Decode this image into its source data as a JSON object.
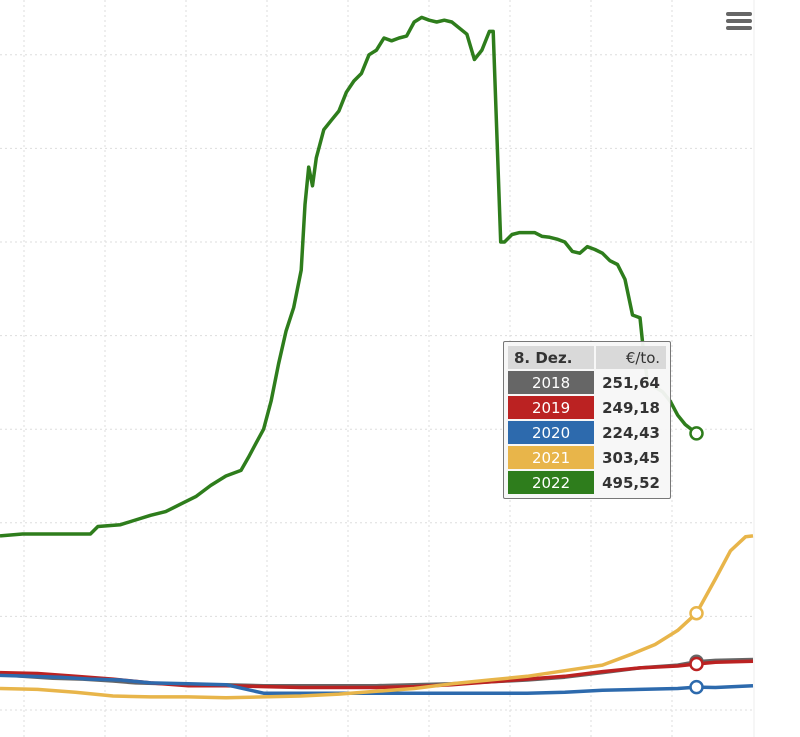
{
  "colors": {
    "2018": "#666666",
    "2019": "#bb2222",
    "2020": "#2d6aad",
    "2021": "#e8b54a",
    "2022": "#2e7d1c",
    "grid": "#dddddd"
  },
  "menu": {
    "icon": "hamburger-menu-icon"
  },
  "tooltip": {
    "date": "8. Dez.",
    "unit": "€/to.",
    "rows": [
      {
        "year": "2018",
        "value": "251,64"
      },
      {
        "year": "2019",
        "value": "249,18"
      },
      {
        "year": "2020",
        "value": "224,43"
      },
      {
        "year": "2021",
        "value": "303,45"
      },
      {
        "year": "2022",
        "value": "495,52"
      }
    ]
  },
  "chart_data": {
    "type": "line",
    "title": "",
    "xlabel": "",
    "ylabel": "",
    "xlim": [
      0,
      1
    ],
    "ylim": [
      200,
      950
    ],
    "grid": true,
    "tooltip_x": 0.925,
    "series": [
      {
        "name": "2018",
        "points": [
          [
            0,
            238
          ],
          [
            0.03,
            236
          ],
          [
            0.07,
            234
          ],
          [
            0.11,
            233
          ],
          [
            0.15,
            231
          ],
          [
            0.18,
            229
          ],
          [
            0.22,
            228
          ],
          [
            0.26,
            227
          ],
          [
            0.3,
            227
          ],
          [
            0.35,
            226
          ],
          [
            0.4,
            226
          ],
          [
            0.45,
            226
          ],
          [
            0.5,
            226
          ],
          [
            0.55,
            227
          ],
          [
            0.6,
            228
          ],
          [
            0.65,
            230
          ],
          [
            0.7,
            232
          ],
          [
            0.75,
            235
          ],
          [
            0.8,
            240
          ],
          [
            0.85,
            245
          ],
          [
            0.9,
            248
          ],
          [
            0.925,
            251.64
          ],
          [
            0.95,
            253
          ],
          [
            1,
            254
          ]
        ]
      },
      {
        "name": "2019",
        "points": [
          [
            0,
            240
          ],
          [
            0.05,
            239
          ],
          [
            0.1,
            236
          ],
          [
            0.15,
            233
          ],
          [
            0.2,
            229
          ],
          [
            0.25,
            226
          ],
          [
            0.3,
            226
          ],
          [
            0.35,
            225
          ],
          [
            0.4,
            224
          ],
          [
            0.45,
            224
          ],
          [
            0.5,
            224
          ],
          [
            0.55,
            225
          ],
          [
            0.6,
            227
          ],
          [
            0.65,
            230
          ],
          [
            0.7,
            233
          ],
          [
            0.75,
            236
          ],
          [
            0.8,
            241
          ],
          [
            0.85,
            245
          ],
          [
            0.9,
            247
          ],
          [
            0.925,
            249.18
          ],
          [
            0.95,
            251
          ],
          [
            1,
            252
          ]
        ]
      },
      {
        "name": "2020",
        "points": [
          [
            0,
            237
          ],
          [
            0.04,
            236
          ],
          [
            0.08,
            235
          ],
          [
            0.12,
            233
          ],
          [
            0.16,
            232
          ],
          [
            0.2,
            229
          ],
          [
            0.25,
            228
          ],
          [
            0.3,
            227
          ],
          [
            0.35,
            218
          ],
          [
            0.4,
            218
          ],
          [
            0.45,
            218
          ],
          [
            0.5,
            218
          ],
          [
            0.55,
            218
          ],
          [
            0.6,
            218
          ],
          [
            0.65,
            218
          ],
          [
            0.7,
            218
          ],
          [
            0.75,
            219
          ],
          [
            0.8,
            221
          ],
          [
            0.85,
            222
          ],
          [
            0.9,
            223
          ],
          [
            0.925,
            224.43
          ],
          [
            0.95,
            224
          ],
          [
            1,
            226
          ]
        ]
      },
      {
        "name": "2021",
        "points": [
          [
            0,
            223
          ],
          [
            0.05,
            222
          ],
          [
            0.1,
            219
          ],
          [
            0.15,
            215
          ],
          [
            0.2,
            214
          ],
          [
            0.25,
            214
          ],
          [
            0.3,
            213
          ],
          [
            0.35,
            214
          ],
          [
            0.4,
            215
          ],
          [
            0.45,
            217
          ],
          [
            0.5,
            220
          ],
          [
            0.55,
            223
          ],
          [
            0.6,
            228
          ],
          [
            0.65,
            232
          ],
          [
            0.7,
            236
          ],
          [
            0.75,
            242
          ],
          [
            0.8,
            248
          ],
          [
            0.84,
            260
          ],
          [
            0.87,
            270
          ],
          [
            0.9,
            285
          ],
          [
            0.925,
            303.45
          ],
          [
            0.95,
            340
          ],
          [
            0.97,
            370
          ],
          [
            0.99,
            385
          ],
          [
            1,
            386
          ]
        ]
      },
      {
        "name": "2022",
        "points": [
          [
            0,
            386
          ],
          [
            0.03,
            388
          ],
          [
            0.08,
            388
          ],
          [
            0.12,
            388
          ],
          [
            0.13,
            396
          ],
          [
            0.16,
            398
          ],
          [
            0.18,
            403
          ],
          [
            0.2,
            408
          ],
          [
            0.22,
            412
          ],
          [
            0.24,
            420
          ],
          [
            0.26,
            428
          ],
          [
            0.28,
            440
          ],
          [
            0.3,
            450
          ],
          [
            0.32,
            456
          ],
          [
            0.33,
            470
          ],
          [
            0.34,
            485
          ],
          [
            0.35,
            500
          ],
          [
            0.36,
            530
          ],
          [
            0.37,
            570
          ],
          [
            0.38,
            605
          ],
          [
            0.39,
            630
          ],
          [
            0.4,
            670
          ],
          [
            0.405,
            740
          ],
          [
            0.41,
            780
          ],
          [
            0.415,
            760
          ],
          [
            0.42,
            790
          ],
          [
            0.43,
            820
          ],
          [
            0.44,
            830
          ],
          [
            0.45,
            840
          ],
          [
            0.46,
            860
          ],
          [
            0.47,
            872
          ],
          [
            0.48,
            880
          ],
          [
            0.49,
            900
          ],
          [
            0.5,
            905
          ],
          [
            0.51,
            918
          ],
          [
            0.52,
            915
          ],
          [
            0.53,
            918
          ],
          [
            0.54,
            920
          ],
          [
            0.55,
            935
          ],
          [
            0.56,
            940
          ],
          [
            0.57,
            937
          ],
          [
            0.58,
            935
          ],
          [
            0.59,
            937
          ],
          [
            0.6,
            935
          ],
          [
            0.62,
            922
          ],
          [
            0.63,
            895
          ],
          [
            0.64,
            905
          ],
          [
            0.65,
            925
          ],
          [
            0.655,
            925
          ],
          [
            0.665,
            700
          ],
          [
            0.67,
            700
          ],
          [
            0.68,
            708
          ],
          [
            0.69,
            710
          ],
          [
            0.71,
            710
          ],
          [
            0.72,
            706
          ],
          [
            0.73,
            705
          ],
          [
            0.74,
            703
          ],
          [
            0.75,
            700
          ],
          [
            0.76,
            690
          ],
          [
            0.77,
            688
          ],
          [
            0.78,
            695
          ],
          [
            0.79,
            692
          ],
          [
            0.8,
            688
          ],
          [
            0.81,
            680
          ],
          [
            0.82,
            676
          ],
          [
            0.83,
            660
          ],
          [
            0.84,
            622
          ],
          [
            0.85,
            619
          ],
          [
            0.855,
            580
          ],
          [
            0.86,
            550
          ],
          [
            0.87,
            545
          ],
          [
            0.88,
            540
          ],
          [
            0.89,
            530
          ],
          [
            0.9,
            515
          ],
          [
            0.91,
            505
          ],
          [
            0.925,
            495.52
          ]
        ]
      }
    ]
  }
}
